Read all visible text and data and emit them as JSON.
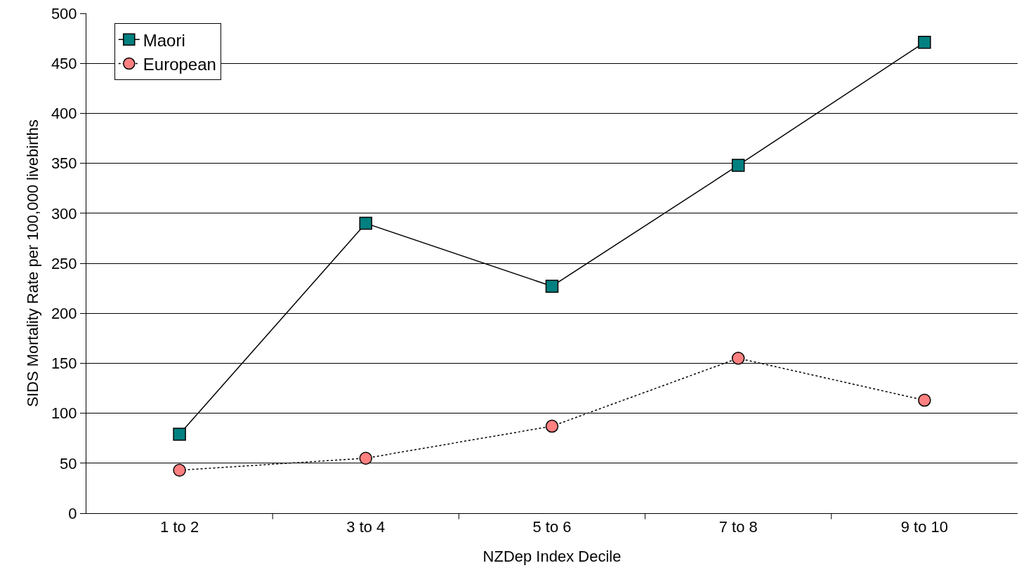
{
  "chart_data": {
    "type": "line",
    "xlabel": "NZDep Index Decile",
    "ylabel": "SIDS Mortality Rate per 100,000 livebirths",
    "categories": [
      "1 to 2",
      "3 to 4",
      "5 to 6",
      "7 to 8",
      "9 to 10"
    ],
    "series": [
      {
        "name": "Maori",
        "color": "#008080",
        "values": [
          79,
          290,
          227,
          348,
          471
        ],
        "marker": "square",
        "line_style": "solid"
      },
      {
        "name": "European",
        "color": "#ff8080",
        "values": [
          43,
          55,
          87,
          155,
          113
        ],
        "marker": "circle",
        "line_style": "dotted"
      }
    ],
    "ylim": [
      0,
      500
    ],
    "yticks": [
      0,
      50,
      100,
      150,
      200,
      250,
      300,
      350,
      400,
      450,
      500
    ],
    "grid": "y",
    "legend": "top left"
  }
}
